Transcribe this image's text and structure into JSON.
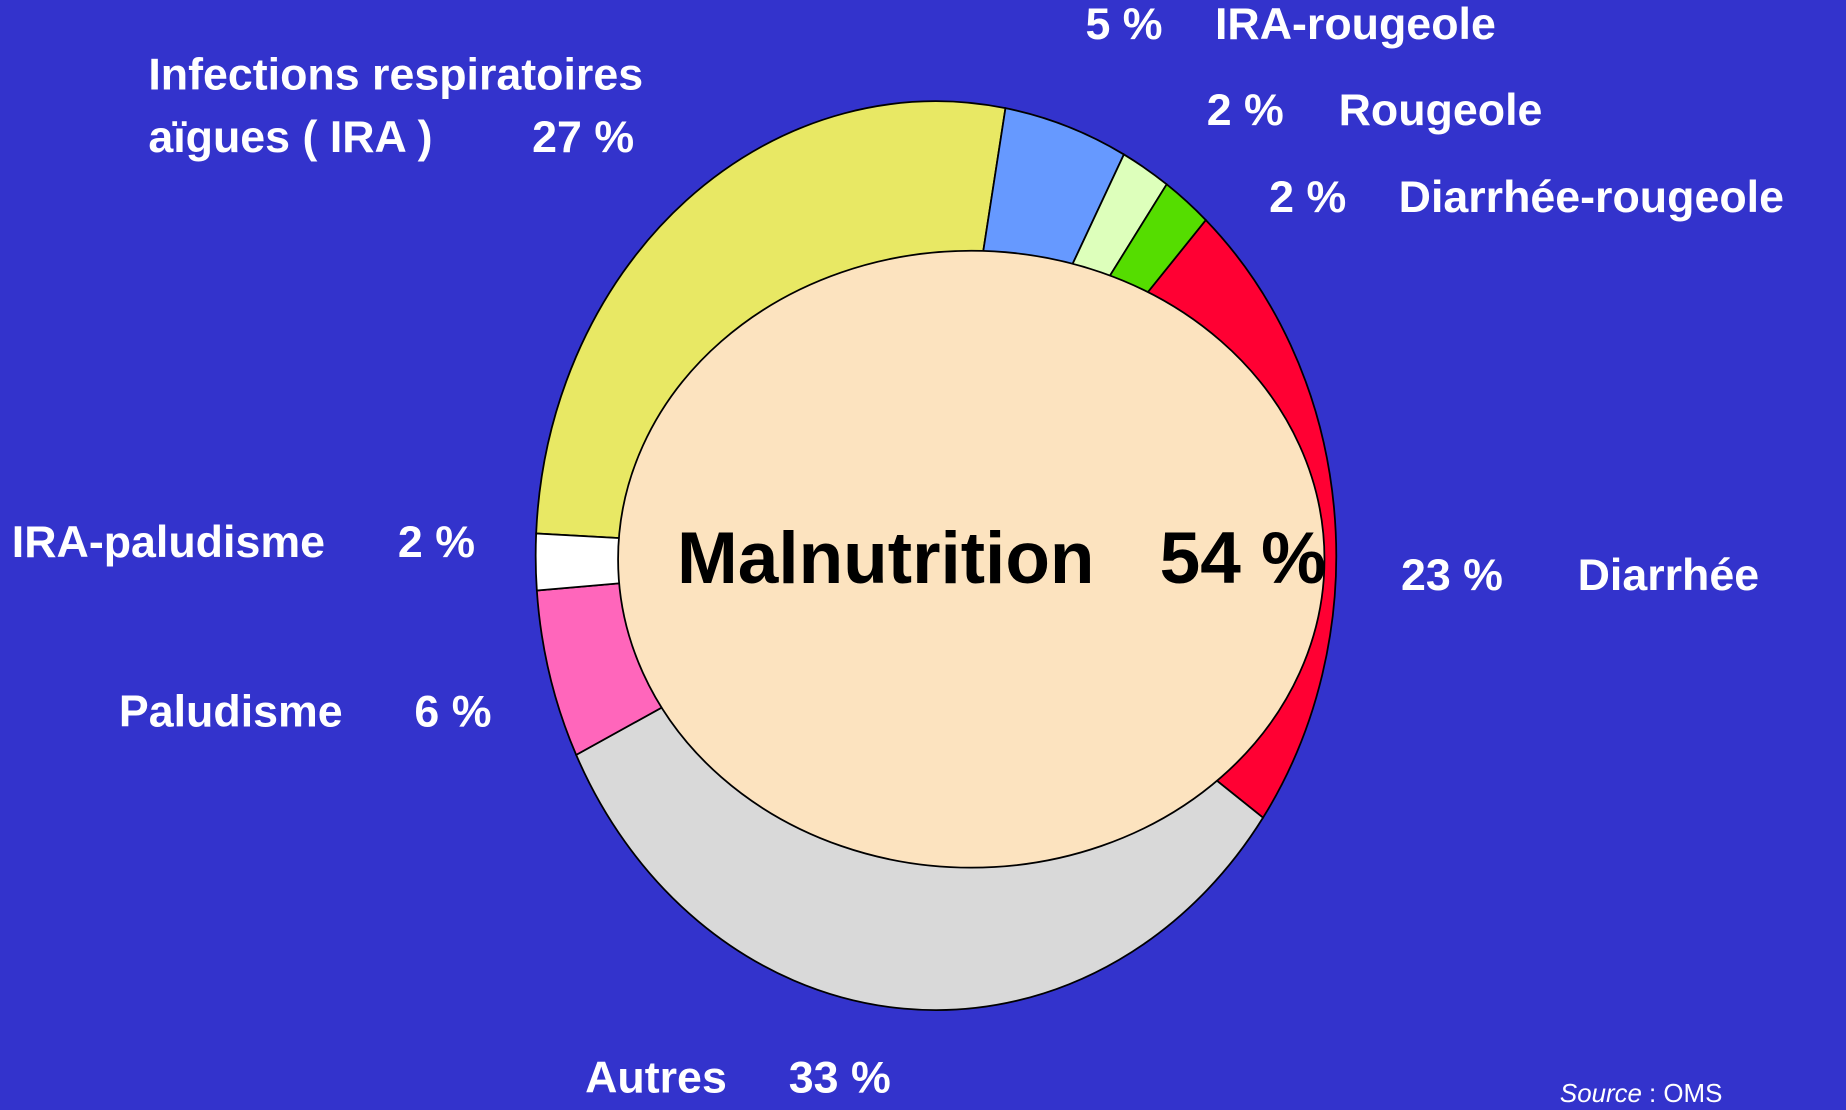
{
  "chart_data": {
    "type": "donut",
    "categories": [
      "Infections respiratoires aïgues ( IRA )",
      "IRA-rougeole",
      "Rougeole",
      "Diarrhée-rougeole",
      "Diarrhée",
      "Autres",
      "Paludisme",
      "IRA-paludisme"
    ],
    "values": [
      27,
      5,
      2,
      2,
      23,
      33,
      6,
      2
    ],
    "value_labels": [
      "27 %",
      "5 %",
      "2 %",
      "2 %",
      "23 %",
      "33 %",
      "6 %",
      "2 %"
    ],
    "colors": [
      "#e8e864",
      "#6699ff",
      "#ddffbb",
      "#55dd00",
      "#ff0033",
      "#d9d9d9",
      "#ff66bb",
      "#ffffff"
    ],
    "center_label": "Malnutrition",
    "center_value": 54,
    "center_value_label": "54 %",
    "center_color": "#fce3bf",
    "source_label": "Source",
    "source": ": OMS"
  }
}
